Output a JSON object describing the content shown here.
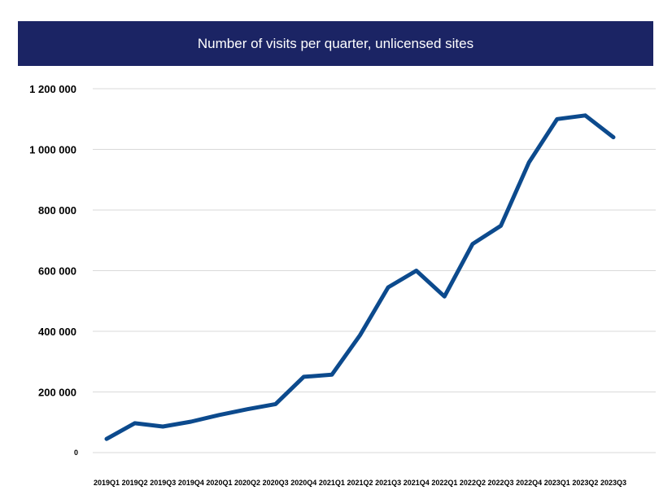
{
  "chart_data": {
    "type": "line",
    "title": "Number of visits per quarter, unlicensed sites",
    "xlabel": "",
    "ylabel": "",
    "categories": [
      "2019Q1",
      "2019Q2",
      "2019Q3",
      "2019Q4",
      "2020Q1",
      "2020Q2",
      "2020Q3",
      "2020Q4",
      "2021Q1",
      "2021Q2",
      "2021Q3",
      "2021Q4",
      "2022Q1",
      "2022Q2",
      "2022Q3",
      "2022Q4",
      "2023Q1",
      "2023Q2",
      "2023Q3"
    ],
    "series": [
      {
        "values": [
          45000,
          97000,
          86000,
          102000,
          124000,
          143000,
          160000,
          250000,
          257000,
          387000,
          545000,
          600000,
          515000,
          688000,
          748000,
          957000,
          1100000,
          1112000,
          1040000
        ]
      }
    ],
    "ylim": [
      0,
      1200000
    ],
    "yticks": [
      0,
      200000,
      400000,
      600000,
      800000,
      1000000,
      1200000
    ],
    "ytick_labels": [
      "0",
      "200 000",
      "400 000",
      "600 000",
      "800 000",
      "1 000 000",
      "1 200 000"
    ],
    "grid": true,
    "line_color": "#0c4a8d",
    "title_bar_color": "#1b2464"
  }
}
